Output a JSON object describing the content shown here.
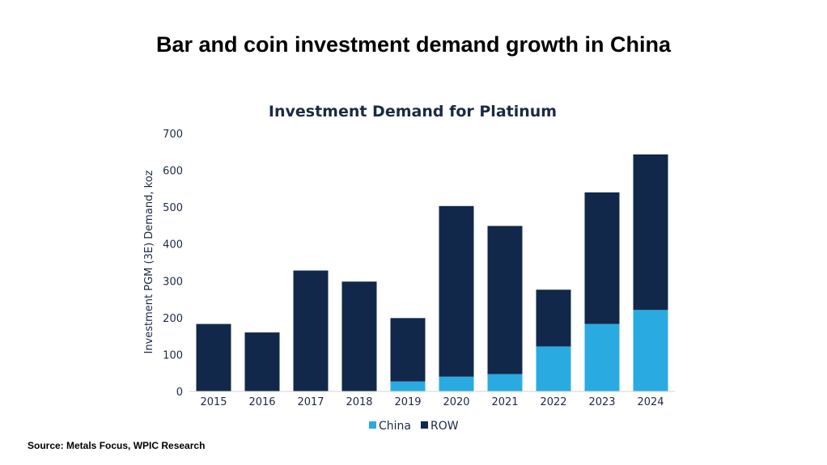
{
  "page": {
    "heading": "Bar and coin investment demand growth in China",
    "source": "Source: Metals Focus, WPIC Research"
  },
  "colors": {
    "china": "#29abe2",
    "row": "#12284a",
    "text": "#1b2a44",
    "axis": "#cfd3d8"
  },
  "chart_data": {
    "type": "bar",
    "stacked": true,
    "title": "Investment Demand for Platinum",
    "xlabel": "",
    "ylabel": "Investment PGM (3E) Demand, koz",
    "ylim": [
      0,
      700
    ],
    "yticks": [
      0,
      100,
      200,
      300,
      400,
      500,
      600,
      700
    ],
    "categories": [
      "2015",
      "2016",
      "2017",
      "2018",
      "2019",
      "2020",
      "2021",
      "2022",
      "2023",
      "2024"
    ],
    "series": [
      {
        "name": "China",
        "values": [
          0,
          0,
          0,
          0,
          27,
          40,
          47,
          122,
          183,
          221
        ]
      },
      {
        "name": "ROW",
        "values": [
          183,
          160,
          328,
          298,
          172,
          463,
          402,
          154,
          357,
          422
        ]
      }
    ],
    "legend_position": "bottom"
  }
}
